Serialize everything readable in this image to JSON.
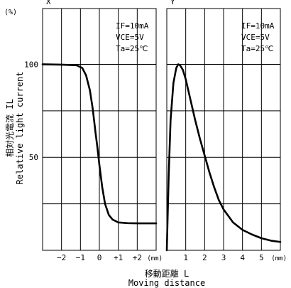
{
  "chart_data": [
    {
      "type": "line",
      "panel_label": "X",
      "xlim": [
        -3.0,
        3.0
      ],
      "ylim": [
        0,
        130
      ],
      "x_ticks": [
        {
          "value": -2,
          "label": "−2"
        },
        {
          "value": -1,
          "label": "−1"
        },
        {
          "value": 0,
          "label": "0"
        },
        {
          "value": 1,
          "label": "+1"
        },
        {
          "value": 2,
          "label": "+2"
        }
      ],
      "x_unit": "(mm)",
      "conditions": [
        "IF=10mA",
        "VCE=5V",
        "Ta=25℃"
      ],
      "series": [
        {
          "x": [
            -3.0,
            -2.0,
            -1.2,
            -0.9,
            -0.7,
            -0.5,
            -0.35,
            -0.2,
            -0.1,
            0.0,
            0.15,
            0.3,
            0.5,
            0.7,
            1.0,
            1.5,
            2.0,
            2.5,
            3.0
          ],
          "y": [
            100,
            99.8,
            99.5,
            98,
            94,
            86,
            76,
            63,
            55,
            46,
            34,
            25,
            19,
            16.5,
            15,
            14.6,
            14.5,
            14.5,
            14.5
          ]
        }
      ]
    },
    {
      "type": "line",
      "panel_label": "Y",
      "xlim": [
        0,
        6.0
      ],
      "ylim": [
        0,
        130
      ],
      "x_ticks": [
        {
          "value": 1,
          "label": "1"
        },
        {
          "value": 2,
          "label": "2"
        },
        {
          "value": 3,
          "label": "3"
        },
        {
          "value": 4,
          "label": "4"
        },
        {
          "value": 5,
          "label": "5"
        }
      ],
      "x_unit": "(mm)",
      "conditions": [
        "IF=10mA",
        "VCE=5V",
        "Ta=25℃"
      ],
      "series": [
        {
          "x": [
            0.0,
            0.1,
            0.2,
            0.35,
            0.5,
            0.6,
            0.7,
            0.85,
            1.0,
            1.25,
            1.5,
            1.75,
            2.0,
            2.25,
            2.5,
            2.75,
            3.0,
            3.5,
            4.0,
            4.5,
            5.0,
            5.5,
            6.0
          ],
          "y": [
            0,
            40,
            70,
            90,
            98,
            100,
            99.5,
            97,
            92,
            81,
            70,
            60,
            51,
            42,
            34,
            27,
            22,
            15,
            11,
            8.5,
            6.5,
            5.2,
            4.5
          ]
        }
      ]
    }
  ],
  "y_axis": {
    "unit": "(%)",
    "ticks": [
      {
        "value": 100,
        "label": "100"
      },
      {
        "value": 50,
        "label": "50"
      }
    ],
    "label_jp": "相対光電流 IL",
    "label_en": "Relative light current"
  },
  "x_axis": {
    "label_jp": "移動距離 L",
    "label_en": "Moving distance"
  },
  "colors": {
    "curve": "#000000",
    "grid": "#000000",
    "background": "#ffffff"
  }
}
